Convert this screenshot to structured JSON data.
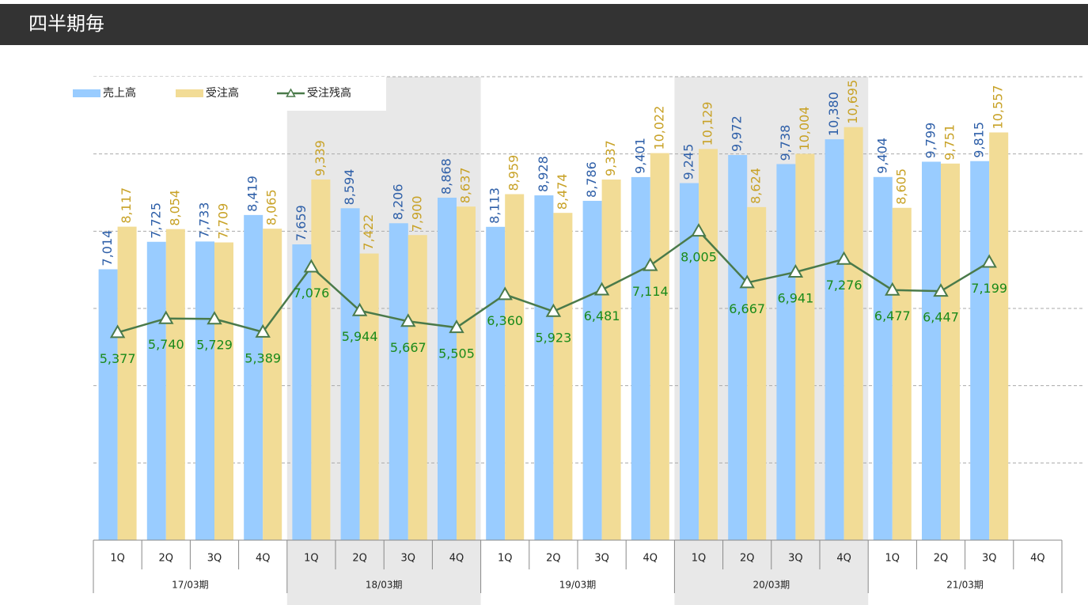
{
  "header": {
    "title": "四半期毎"
  },
  "chart_data": {
    "type": "bar",
    "categories": [
      "1Q",
      "2Q",
      "3Q",
      "4Q",
      "1Q",
      "2Q",
      "3Q",
      "4Q",
      "1Q",
      "2Q",
      "3Q",
      "4Q",
      "1Q",
      "2Q",
      "3Q",
      "4Q",
      "1Q",
      "2Q",
      "3Q",
      "4Q"
    ],
    "groups": [
      "17/03期",
      "18/03期",
      "19/03期",
      "20/03期",
      "21/03期"
    ],
    "shaded_groups": [
      1,
      3
    ],
    "shade_color": "#e8e8e8",
    "ylim": [
      0,
      12000
    ],
    "yticks": [
      0,
      2000,
      4000,
      6000,
      8000,
      10000,
      12000
    ],
    "grid": true,
    "legend": "top-left",
    "series": [
      {
        "name": "売上高",
        "type": "bar",
        "color": "#99ccff",
        "label_color": "#2e5fa8",
        "values": [
          7014,
          7725,
          7733,
          8419,
          7659,
          8594,
          8206,
          8868,
          8113,
          8928,
          8786,
          9401,
          9245,
          9972,
          9738,
          10380,
          9404,
          9799,
          9815,
          null
        ],
        "value_labels": [
          "7,014",
          "7,725",
          "7,733",
          "8,419",
          "7,659",
          "8,594",
          "8,206",
          "8,868",
          "8,113",
          "8,928",
          "8,786",
          "9,401",
          "9,245",
          "9,972",
          "9,738",
          "10,380",
          "9,404",
          "9,799",
          "9,815",
          null
        ]
      },
      {
        "name": "受注高",
        "type": "bar",
        "color": "#f2dc96",
        "label_color": "#c8a227",
        "values": [
          8117,
          8054,
          7709,
          8065,
          9339,
          7422,
          7900,
          8637,
          8959,
          8474,
          9337,
          10022,
          10129,
          8624,
          10004,
          10695,
          8605,
          9751,
          10557,
          null
        ],
        "value_labels": [
          "8,117",
          "8,054",
          "7,709",
          "8,065",
          "9,339",
          "7,422",
          "7,900",
          "8,637",
          "8,959",
          "8,474",
          "9,337",
          "10,022",
          "10,129",
          "8,624",
          "10,004",
          "10,695",
          "8,605",
          "9,751",
          "10,557",
          null
        ]
      },
      {
        "name": "受注残高",
        "type": "line",
        "color": "#4a7a4a",
        "label_color": "#1a8a1a",
        "values": [
          5377,
          5740,
          5729,
          5389,
          7076,
          5944,
          5667,
          5505,
          6360,
          5923,
          6481,
          7114,
          8005,
          6667,
          6941,
          7276,
          6477,
          6447,
          7199,
          null
        ],
        "value_labels": [
          "5,377",
          "5,740",
          "5,729",
          "5,389",
          "7,076",
          "5,944",
          "5,667",
          "5,505",
          "6,360",
          "5,923",
          "6,481",
          "7,114",
          "8,005",
          "6,667",
          "6,941",
          "7,276",
          "6,477",
          "6,447",
          "7,199",
          null
        ]
      }
    ]
  }
}
